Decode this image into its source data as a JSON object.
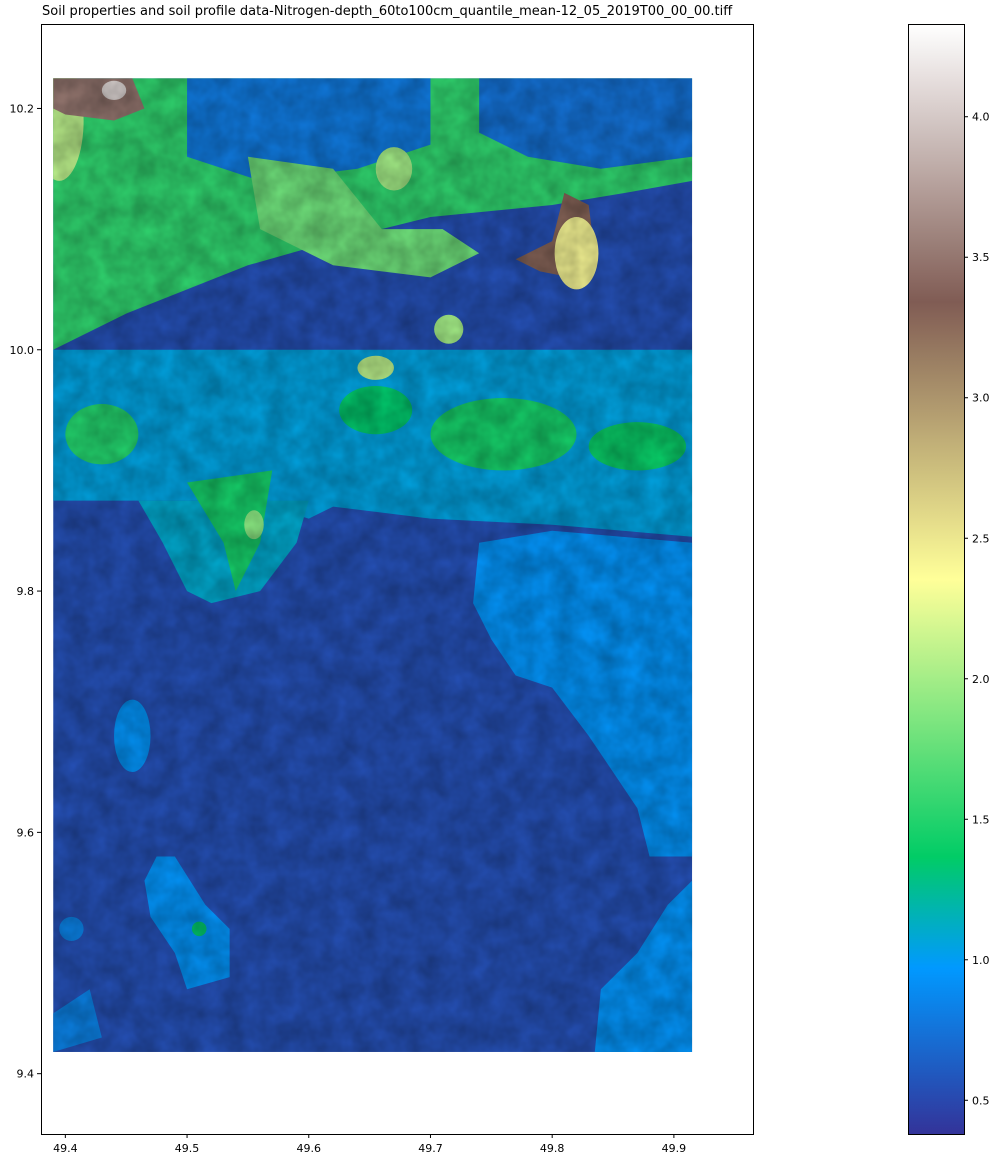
{
  "chart_data": {
    "type": "heatmap",
    "title": "Soil properties and soil profile data-Nitrogen-depth_60to100cm_quantile_mean-12_05_2019T00_00_00.tiff",
    "xlabel": "",
    "ylabel": "",
    "xlim": [
      49.38,
      49.965
    ],
    "ylim": [
      9.35,
      10.27
    ],
    "x_ticks": [
      49.4,
      49.5,
      49.6,
      49.7,
      49.8,
      49.9
    ],
    "x_tick_labels": [
      "49.4",
      "49.5",
      "49.6",
      "49.7",
      "49.8",
      "49.9"
    ],
    "y_ticks": [
      9.4,
      9.6,
      9.8,
      10.0,
      10.2
    ],
    "y_tick_labels": [
      "9.4",
      "9.6",
      "9.8",
      "10.0",
      "10.2"
    ],
    "raster_extent": {
      "x": [
        49.39,
        49.915
      ],
      "y": [
        9.418,
        10.225
      ]
    },
    "colormap": "terrain",
    "colorbar": {
      "range": [
        0.38,
        4.33
      ],
      "ticks": [
        0.5,
        1.0,
        1.5,
        2.0,
        2.5,
        3.0,
        3.5,
        4.0
      ],
      "tick_labels": [
        "0.5",
        "1.0",
        "1.5",
        "2.0",
        "2.5",
        "3.0",
        "3.5",
        "4.0"
      ]
    },
    "value_regions": [
      {
        "region": "southern half (below ~9.87)",
        "approx_value": 0.55
      },
      {
        "region": "south-east block and south-centre patches",
        "approx_value": 0.95
      },
      {
        "region": "central band (~9.87 to 10.0)",
        "approx_value": 1.1
      },
      {
        "region": "north band (~10.0 to 10.15)",
        "approx_value": 1.6
      },
      {
        "region": "north-west corner hotspot",
        "approx_value": 3.6
      },
      {
        "region": "north-east hotspot near 49.82, 10.1",
        "approx_value": 3.2
      }
    ]
  }
}
